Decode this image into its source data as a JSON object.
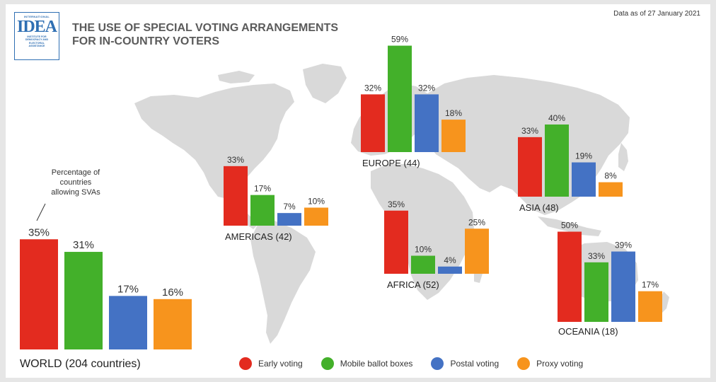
{
  "header": {
    "title_line1": "THE USE OF SPECIAL VOTING ARRANGEMENTS",
    "title_line2": "FOR IN-COUNTRY VOTERS",
    "date_note": "Data as of 27 January 2021"
  },
  "logo": {
    "top_text": "INTERNATIONAL",
    "main_text": "IDEA",
    "sub_lines": [
      "INSTITUTE FOR",
      "DEMOCRACY AND",
      "ELECTORAL",
      "ASSISTANCE"
    ]
  },
  "annotation": "Percentage of countries allowing SVAs",
  "colors": {
    "early": "#e32b1f",
    "mobile": "#43b02a",
    "postal": "#4472c4",
    "proxy": "#f7941d",
    "map": "#d9d9d9"
  },
  "chart_data": {
    "type": "bar",
    "title": "THE USE OF SPECIAL VOTING ARRANGEMENTS FOR IN-COUNTRY VOTERS",
    "unit": "%",
    "series_names": [
      "Early voting",
      "Mobile ballot boxes",
      "Postal voting",
      "Proxy voting"
    ],
    "groups": [
      {
        "id": "world",
        "label": "WORLD (204 countries)",
        "values": [
          35,
          31,
          17,
          16
        ]
      },
      {
        "id": "americas",
        "label": "AMERICAS (42)",
        "values": [
          33,
          17,
          7,
          10
        ]
      },
      {
        "id": "europe",
        "label": "EUROPE (44)",
        "values": [
          32,
          59,
          32,
          18
        ]
      },
      {
        "id": "africa",
        "label": "AFRICA (52)",
        "values": [
          35,
          10,
          4,
          25
        ]
      },
      {
        "id": "asia",
        "label": "ASIA (48)",
        "values": [
          33,
          40,
          19,
          8
        ]
      },
      {
        "id": "oceania",
        "label": "OCEANIA (18)",
        "values": [
          50,
          33,
          39,
          17
        ]
      }
    ]
  }
}
